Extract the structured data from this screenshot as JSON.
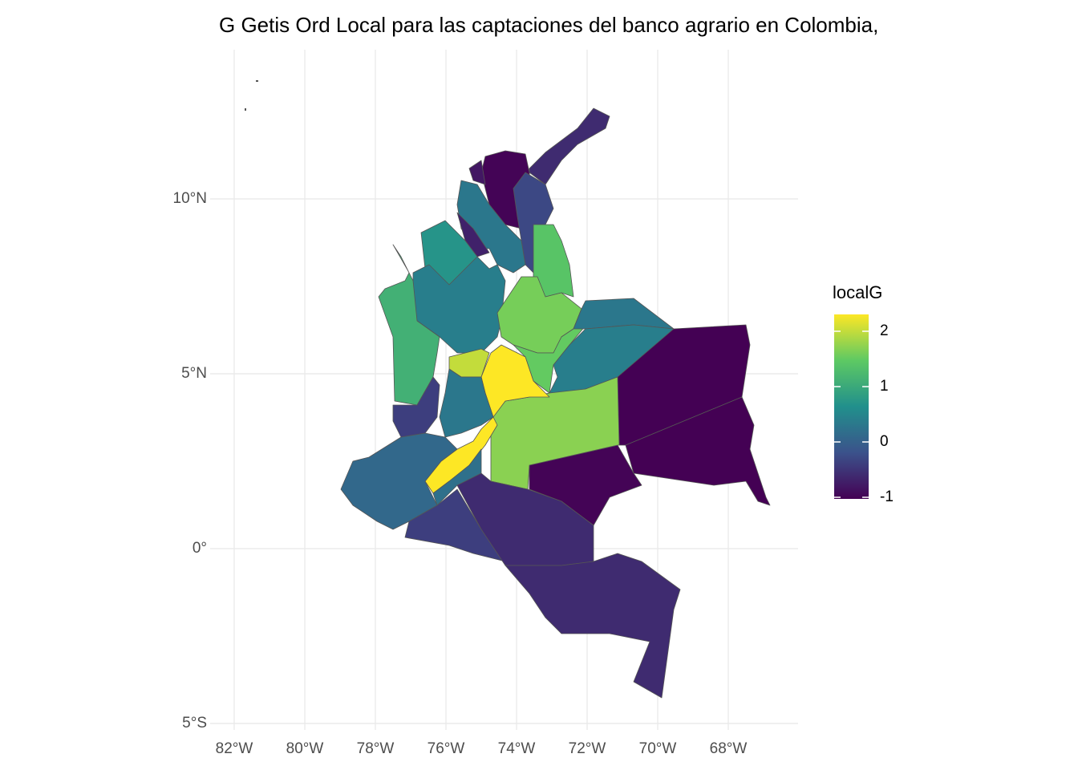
{
  "chart_data": {
    "type": "map",
    "title": "G Getis Ord Local para las captaciones del banco agrario en Colombia,",
    "legend_title": "localG",
    "clim": [
      -1.03,
      2.3
    ],
    "cticks": [
      2,
      1,
      0,
      -1
    ],
    "xlim": [
      -82.7,
      -66.7
    ],
    "ylim": [
      -5.5,
      14
    ],
    "xticks": [
      {
        "value": -82,
        "label": "82°W"
      },
      {
        "value": -80,
        "label": "80°W"
      },
      {
        "value": -78,
        "label": "78°W"
      },
      {
        "value": -76,
        "label": "76°W"
      },
      {
        "value": -74,
        "label": "74°W"
      },
      {
        "value": -72,
        "label": "72°W"
      },
      {
        "value": -70,
        "label": "70°W"
      },
      {
        "value": -68,
        "label": "68°W"
      }
    ],
    "yticks": [
      {
        "value": 10,
        "label": "10°N"
      },
      {
        "value": 5,
        "label": "5°N"
      },
      {
        "value": 0,
        "label": "0°"
      },
      {
        "value": -5,
        "label": "5°S"
      }
    ],
    "grid": true,
    "regions": [
      {
        "value": -0.6
      },
      {
        "value": -1.0
      },
      {
        "value": -0.8
      },
      {
        "value": -0.3
      },
      {
        "value": 0.3
      },
      {
        "value": -0.7
      },
      {
        "value": 0.7
      },
      {
        "value": 0.4
      },
      {
        "value": 1.1
      },
      {
        "value": 1.4
      },
      {
        "value": 1.6
      },
      {
        "value": 1.5
      },
      {
        "value": 0.3
      },
      {
        "value": 0.4
      },
      {
        "value": -1.03
      },
      {
        "value": -1.03
      },
      {
        "value": -1.0
      },
      {
        "value": 1.7
      },
      {
        "value": 2.3
      },
      {
        "value": 2.0
      },
      {
        "value": 2.3
      },
      {
        "value": -0.4
      },
      {
        "value": 0.3
      },
      {
        "value": 0.1
      },
      {
        "value": 0.2
      },
      {
        "value": -0.4
      },
      {
        "value": -0.6
      },
      {
        "value": -0.6
      }
    ]
  }
}
